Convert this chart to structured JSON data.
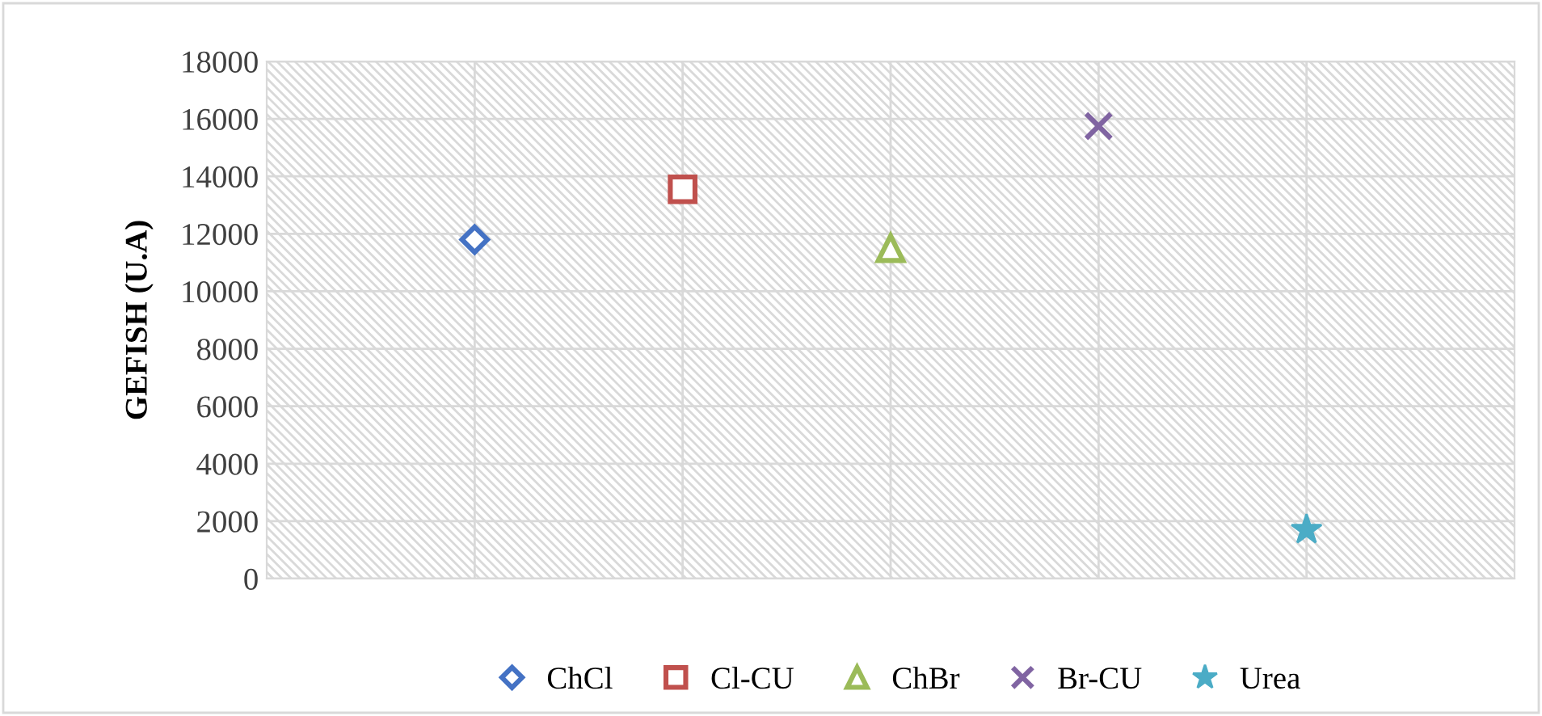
{
  "chart_data": {
    "type": "scatter",
    "ylabel": "GEFISH (U.A)",
    "categories": [
      null,
      null,
      null,
      null,
      null
    ],
    "ylim": [
      0,
      18000
    ],
    "yticks": [
      0,
      2000,
      4000,
      6000,
      8000,
      10000,
      12000,
      14000,
      16000,
      18000
    ],
    "grid": true,
    "legend": "bottom",
    "tick_labels": "y",
    "series": [
      {
        "name": "ChCl",
        "color": "#4472c4",
        "marker": "diamond",
        "values": [
          11800,
          null,
          null,
          null,
          null
        ]
      },
      {
        "name": "Cl-CU",
        "color": "#c0504d",
        "marker": "square",
        "values": [
          null,
          13550,
          null,
          null,
          null
        ]
      },
      {
        "name": "ChBr",
        "color": "#9bbb59",
        "marker": "triangle",
        "values": [
          null,
          null,
          11500,
          null,
          null
        ]
      },
      {
        "name": "Br-CU",
        "color": "#8064a2",
        "marker": "cross",
        "values": [
          null,
          null,
          null,
          15750,
          null
        ]
      },
      {
        "name": "Urea",
        "color": "#4bacc6",
        "marker": "star",
        "values": [
          null,
          null,
          null,
          null,
          1700
        ]
      }
    ]
  }
}
